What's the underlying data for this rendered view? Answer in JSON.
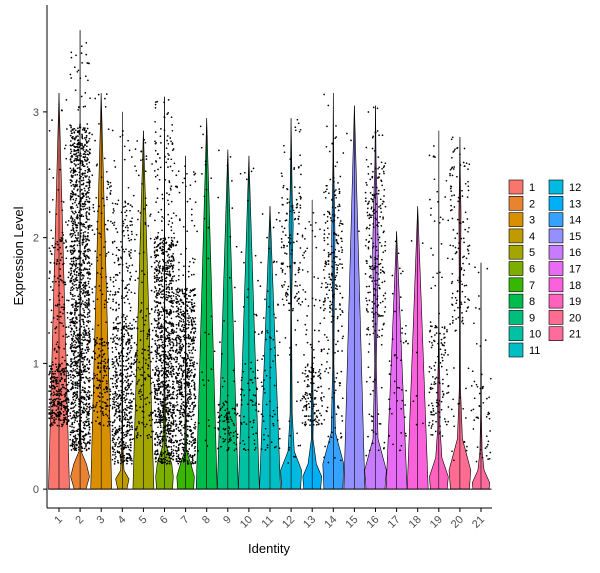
{
  "chart_data": {
    "type": "violin",
    "xlabel": "Identity",
    "ylabel": "Expression Level",
    "ylim": [
      -0.15,
      3.85
    ],
    "yticks": [
      0,
      1,
      2,
      3
    ],
    "grid": false,
    "legend_position": "right",
    "categories": [
      "1",
      "2",
      "3",
      "4",
      "5",
      "6",
      "7",
      "8",
      "9",
      "10",
      "11",
      "12",
      "13",
      "14",
      "15",
      "16",
      "17",
      "18",
      "19",
      "20",
      "21"
    ],
    "legend": {
      "columns": [
        [
          "1",
          "2",
          "3",
          "4",
          "5",
          "6",
          "7",
          "8",
          "9",
          "10",
          "11"
        ],
        [
          "12",
          "13",
          "14",
          "15",
          "16",
          "17",
          "18",
          "19",
          "20",
          "21"
        ]
      ]
    },
    "colors": [
      "#F8766D",
      "#EA8331",
      "#D89000",
      "#C09B00",
      "#A3A500",
      "#7CAE00",
      "#39B600",
      "#00BB4E",
      "#00BF7D",
      "#00C1A3",
      "#00BFC4",
      "#00BAE0",
      "#00B0F6",
      "#35A2FF",
      "#9590FF",
      "#C77CFF",
      "#E76BF3",
      "#FA62DB",
      "#FF62BC",
      "#FF6C91",
      "#FF6B9A"
    ],
    "series": [
      {
        "name": "1",
        "max": 3.15,
        "density": "low",
        "dots": [
          [
            0.5,
            1.0,
            300
          ],
          [
            1.0,
            2.0,
            120
          ],
          [
            2.0,
            3.1,
            25
          ]
        ],
        "violin": []
      },
      {
        "name": "2",
        "max": 3.65,
        "density": "high",
        "dots": [
          [
            0.3,
            2.9,
            1400
          ],
          [
            2.9,
            3.6,
            30
          ]
        ],
        "violin": [
          [
            0,
            0.28
          ],
          [
            0.1,
            0.45
          ],
          [
            0.2,
            0.3
          ],
          [
            0.3,
            0.05
          ],
          [
            0.6,
            0.02
          ],
          [
            3.65,
            0.0
          ]
        ]
      },
      {
        "name": "3",
        "max": 3.15,
        "density": "low",
        "dots": [
          [
            0.5,
            1.2,
            150
          ],
          [
            1.2,
            2.6,
            80
          ],
          [
            2.6,
            3.15,
            10
          ]
        ],
        "violin": []
      },
      {
        "name": "4",
        "max": 3.0,
        "density": "mid",
        "dots": [
          [
            0.2,
            1.3,
            500
          ],
          [
            1.3,
            2.3,
            150
          ],
          [
            2.3,
            3.0,
            12
          ]
        ],
        "violin": [
          [
            0,
            0.22
          ],
          [
            0.08,
            0.32
          ],
          [
            0.15,
            0.08
          ],
          [
            0.4,
            0.02
          ],
          [
            3.0,
            0.0
          ]
        ]
      },
      {
        "name": "5",
        "max": 2.85,
        "density": "low",
        "dots": [
          [
            0.4,
            1.4,
            140
          ],
          [
            1.4,
            2.8,
            50
          ]
        ],
        "violin": []
      },
      {
        "name": "6",
        "max": 3.12,
        "density": "high",
        "dots": [
          [
            0.2,
            2.0,
            1000
          ],
          [
            2.0,
            3.1,
            90
          ]
        ],
        "violin": [
          [
            0,
            0.38
          ],
          [
            0.1,
            0.42
          ],
          [
            0.2,
            0.35
          ],
          [
            0.35,
            0.08
          ],
          [
            0.8,
            0.02
          ],
          [
            3.12,
            0.0
          ]
        ]
      },
      {
        "name": "7",
        "max": 2.65,
        "density": "high",
        "dots": [
          [
            0.2,
            1.6,
            700
          ],
          [
            1.6,
            2.6,
            50
          ]
        ],
        "violin": [
          [
            0,
            0.38
          ],
          [
            0.1,
            0.42
          ],
          [
            0.2,
            0.25
          ],
          [
            0.3,
            0.05
          ],
          [
            0.7,
            0.02
          ],
          [
            2.65,
            0.0
          ]
        ]
      },
      {
        "name": "8",
        "max": 2.95,
        "density": "low",
        "dots": [
          [
            0.2,
            1.0,
            12
          ],
          [
            1.0,
            2.9,
            18
          ]
        ],
        "violin": []
      },
      {
        "name": "9",
        "max": 2.7,
        "density": "low",
        "dots": [
          [
            0.3,
            0.7,
            90
          ],
          [
            0.7,
            2.7,
            20
          ]
        ],
        "violin": []
      },
      {
        "name": "10",
        "max": 2.65,
        "density": "low",
        "dots": [
          [
            0.3,
            1.0,
            60
          ],
          [
            1.0,
            2.6,
            20
          ]
        ],
        "violin": []
      },
      {
        "name": "11",
        "max": 2.25,
        "density": "low",
        "dots": [
          [
            0.3,
            1.5,
            60
          ],
          [
            1.5,
            2.2,
            15
          ]
        ],
        "violin": []
      },
      {
        "name": "12",
        "max": 2.95,
        "density": "mid",
        "dots": [
          [
            1.4,
            2.4,
            120
          ],
          [
            2.4,
            2.95,
            20
          ],
          [
            0.2,
            1.4,
            20
          ]
        ],
        "violin": [
          [
            0,
            0.45
          ],
          [
            0.15,
            0.5
          ],
          [
            0.3,
            0.15
          ],
          [
            0.6,
            0.05
          ],
          [
            1.4,
            0.02
          ],
          [
            1.8,
            0.06
          ],
          [
            2.1,
            0.1
          ],
          [
            2.35,
            0.05
          ],
          [
            2.95,
            0.0
          ]
        ]
      },
      {
        "name": "13",
        "max": 2.3,
        "density": "mid",
        "dots": [
          [
            0.5,
            1.0,
            120
          ],
          [
            1.0,
            2.3,
            50
          ]
        ],
        "violin": [
          [
            0,
            0.4
          ],
          [
            0.1,
            0.45
          ],
          [
            0.2,
            0.2
          ],
          [
            0.4,
            0.04
          ],
          [
            0.6,
            0.05
          ],
          [
            0.9,
            0.03
          ],
          [
            1.2,
            0.01
          ],
          [
            2.3,
            0.0
          ]
        ]
      },
      {
        "name": "14",
        "max": 3.15,
        "density": "mid",
        "dots": [
          [
            1.3,
            2.4,
            170
          ],
          [
            0.2,
            1.3,
            60
          ],
          [
            2.4,
            3.15,
            20
          ]
        ],
        "violin": [
          [
            0,
            0.45
          ],
          [
            0.2,
            0.5
          ],
          [
            0.45,
            0.1
          ],
          [
            1.0,
            0.03
          ],
          [
            1.6,
            0.05
          ],
          [
            2.0,
            0.08
          ],
          [
            2.3,
            0.05
          ],
          [
            2.6,
            0.02
          ],
          [
            3.15,
            0.0
          ]
        ]
      },
      {
        "name": "15",
        "max": 3.05,
        "density": "none",
        "dots": [
          [
            2.0,
            3.05,
            3
          ]
        ],
        "violin": []
      },
      {
        "name": "16",
        "max": 3.05,
        "density": "mid",
        "dots": [
          [
            1.2,
            2.6,
            220
          ],
          [
            0.2,
            1.2,
            30
          ],
          [
            2.6,
            3.05,
            15
          ]
        ],
        "violin": [
          [
            0,
            0.45
          ],
          [
            0.15,
            0.52
          ],
          [
            0.4,
            0.12
          ],
          [
            1.0,
            0.04
          ],
          [
            1.5,
            0.1
          ],
          [
            1.9,
            0.14
          ],
          [
            2.3,
            0.08
          ],
          [
            2.6,
            0.03
          ],
          [
            3.05,
            0.0
          ]
        ]
      },
      {
        "name": "17",
        "max": 2.05,
        "density": "low",
        "dots": [
          [
            0.3,
            1.3,
            40
          ],
          [
            1.3,
            2.0,
            10
          ]
        ],
        "violin": []
      },
      {
        "name": "18",
        "max": 2.25,
        "density": "none",
        "dots": [
          [
            0.5,
            2.2,
            8
          ]
        ],
        "violin": []
      },
      {
        "name": "19",
        "max": 2.85,
        "density": "mid",
        "dots": [
          [
            0.4,
            1.3,
            120
          ],
          [
            1.3,
            2.8,
            30
          ]
        ],
        "violin": [
          [
            0,
            0.4
          ],
          [
            0.1,
            0.45
          ],
          [
            0.25,
            0.15
          ],
          [
            0.5,
            0.05
          ],
          [
            0.8,
            0.06
          ],
          [
            1.0,
            0.03
          ],
          [
            1.3,
            0.01
          ],
          [
            2.85,
            0.0
          ]
        ]
      },
      {
        "name": "20",
        "max": 2.8,
        "density": "mid",
        "dots": [
          [
            1.3,
            2.6,
            120
          ],
          [
            0.2,
            1.3,
            20
          ],
          [
            2.6,
            2.8,
            10
          ]
        ],
        "violin": [
          [
            0,
            0.45
          ],
          [
            0.15,
            0.52
          ],
          [
            0.4,
            0.12
          ],
          [
            0.8,
            0.03
          ],
          [
            1.3,
            0.02
          ],
          [
            1.8,
            0.04
          ],
          [
            2.2,
            0.05
          ],
          [
            2.5,
            0.02
          ],
          [
            2.8,
            0.0
          ]
        ]
      },
      {
        "name": "21",
        "max": 1.8,
        "density": "low",
        "dots": [
          [
            0.2,
            1.0,
            45
          ],
          [
            1.0,
            1.8,
            10
          ]
        ],
        "violin": [
          [
            0,
            0.38
          ],
          [
            0.05,
            0.42
          ],
          [
            0.15,
            0.15
          ],
          [
            0.3,
            0.05
          ],
          [
            0.6,
            0.02
          ],
          [
            1.8,
            0.0
          ]
        ]
      }
    ]
  }
}
